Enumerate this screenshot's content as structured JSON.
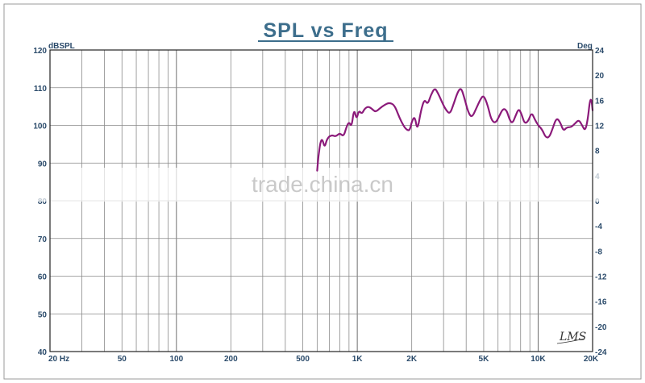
{
  "chart_data": {
    "type": "line",
    "title": "SPL vs Freq",
    "y_left_unit": "dBSPL",
    "y_right_unit": "Deg",
    "x_scale": "log",
    "xlim": [
      20,
      20000
    ],
    "ylim": [
      40,
      120
    ],
    "y_right_lim": [
      -24,
      24
    ],
    "grid": true,
    "x_tick_labels": [
      {
        "value": 20,
        "label": "20 Hz"
      },
      {
        "value": 50,
        "label": "50"
      },
      {
        "value": 100,
        "label": "100"
      },
      {
        "value": 200,
        "label": "200"
      },
      {
        "value": 500,
        "label": "500"
      },
      {
        "value": 1000,
        "label": "1K"
      },
      {
        "value": 2000,
        "label": "2K"
      },
      {
        "value": 5000,
        "label": "5K"
      },
      {
        "value": 10000,
        "label": "10K"
      },
      {
        "value": 20000,
        "label": "20K"
      }
    ],
    "y_left_ticks": [
      {
        "value": 120,
        "label": "120"
      },
      {
        "value": 110,
        "label": "110"
      },
      {
        "value": 100,
        "label": "100"
      },
      {
        "value": 90,
        "label": "90"
      },
      {
        "value": 80,
        "label": "80"
      },
      {
        "value": 70,
        "label": "70"
      },
      {
        "value": 60,
        "label": "60"
      },
      {
        "value": 50,
        "label": "50"
      },
      {
        "value": 40,
        "label": "40"
      }
    ],
    "y_right_ticks": [
      {
        "value": 24,
        "label": "24"
      },
      {
        "value": 20,
        "label": "20"
      },
      {
        "value": 16,
        "label": "16"
      },
      {
        "value": 12,
        "label": "12"
      },
      {
        "value": 8,
        "label": "8"
      },
      {
        "value": 4,
        "label": "4"
      },
      {
        "value": 0,
        "label": "0"
      },
      {
        "value": -4,
        "label": "-4"
      },
      {
        "value": -8,
        "label": "-8"
      },
      {
        "value": -12,
        "label": "-12"
      },
      {
        "value": -16,
        "label": "-16"
      },
      {
        "value": -20,
        "label": "-20"
      },
      {
        "value": -24,
        "label": "-24"
      }
    ],
    "series": [
      {
        "color": "#8b1a7a",
        "points": [
          [
            600,
            88
          ],
          [
            610,
            92
          ],
          [
            625,
            95.5
          ],
          [
            640,
            96.5
          ],
          [
            660,
            94
          ],
          [
            680,
            96.5
          ],
          [
            720,
            97.5
          ],
          [
            760,
            97
          ],
          [
            800,
            98
          ],
          [
            840,
            97
          ],
          [
            870,
            99.5
          ],
          [
            900,
            101
          ],
          [
            930,
            99.5
          ],
          [
            960,
            104.5
          ],
          [
            990,
            101.5
          ],
          [
            1020,
            104
          ],
          [
            1060,
            103
          ],
          [
            1100,
            104.5
          ],
          [
            1150,
            105
          ],
          [
            1200,
            104.5
          ],
          [
            1260,
            103.5
          ],
          [
            1330,
            104.5
          ],
          [
            1420,
            105.5
          ],
          [
            1500,
            106
          ],
          [
            1600,
            105.5
          ],
          [
            1680,
            103
          ],
          [
            1750,
            101
          ],
          [
            1850,
            99
          ],
          [
            1950,
            98.5
          ],
          [
            2000,
            101
          ],
          [
            2080,
            102.5
          ],
          [
            2150,
            98.5
          ],
          [
            2250,
            104
          ],
          [
            2350,
            107
          ],
          [
            2450,
            105.5
          ],
          [
            2550,
            108
          ],
          [
            2680,
            110
          ],
          [
            2800,
            108.5
          ],
          [
            2950,
            106
          ],
          [
            3100,
            104
          ],
          [
            3250,
            103
          ],
          [
            3400,
            105.5
          ],
          [
            3600,
            109
          ],
          [
            3750,
            110
          ],
          [
            3900,
            107.5
          ],
          [
            4100,
            103.5
          ],
          [
            4300,
            102
          ],
          [
            4550,
            104.5
          ],
          [
            4800,
            107
          ],
          [
            5000,
            108
          ],
          [
            5250,
            105.5
          ],
          [
            5500,
            101.5
          ],
          [
            5800,
            100.5
          ],
          [
            6100,
            102.5
          ],
          [
            6400,
            104.5
          ],
          [
            6700,
            104
          ],
          [
            6950,
            101.5
          ],
          [
            7200,
            100.5
          ],
          [
            7500,
            102.5
          ],
          [
            7800,
            104.5
          ],
          [
            8100,
            103
          ],
          [
            8400,
            100.5
          ],
          [
            8800,
            101
          ],
          [
            9200,
            103.5
          ],
          [
            9600,
            101.5
          ],
          [
            10000,
            100
          ],
          [
            10500,
            99
          ],
          [
            11000,
            96.8
          ],
          [
            11500,
            96.8
          ],
          [
            12000,
            99
          ],
          [
            12600,
            102
          ],
          [
            13200,
            101
          ],
          [
            13800,
            98.5
          ],
          [
            14400,
            99.5
          ],
          [
            15200,
            99.5
          ],
          [
            16000,
            100.5
          ],
          [
            16800,
            101.5
          ],
          [
            17500,
            100
          ],
          [
            18200,
            98.5
          ],
          [
            18800,
            101.5
          ],
          [
            19300,
            106.5
          ],
          [
            19700,
            107
          ],
          [
            20000,
            104
          ]
        ]
      }
    ]
  },
  "watermark": "trade.china.cn",
  "logo": "LMS"
}
